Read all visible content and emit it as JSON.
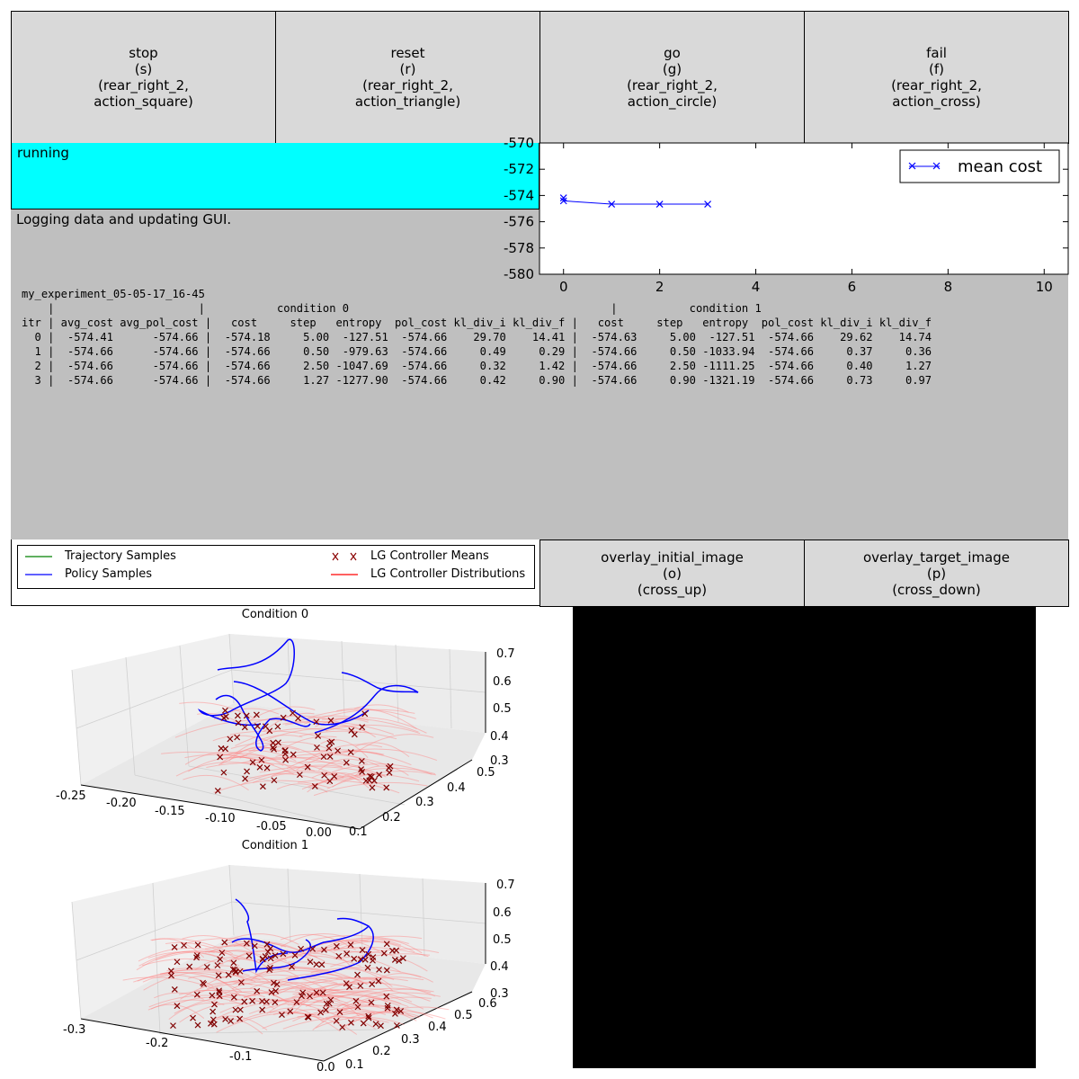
{
  "buttons": [
    {
      "name": "stop-button",
      "label": "stop\n(s)\n(rear_right_2,\naction_square)"
    },
    {
      "name": "reset-button",
      "label": "reset\n(r)\n(rear_right_2,\naction_triangle)"
    },
    {
      "name": "go-button",
      "label": "go\n(g)\n(rear_right_2,\naction_circle)"
    },
    {
      "name": "fail-button",
      "label": "fail\n(f)\n(rear_right_2,\naction_cross)"
    }
  ],
  "overlay_buttons": [
    {
      "name": "overlay-initial-image-button",
      "label": "overlay_initial_image\n(o)\n(cross_up)"
    },
    {
      "name": "overlay-target-image-button",
      "label": "overlay_target_image\n(p)\n(cross_down)"
    }
  ],
  "status": {
    "text": "running",
    "color": "#00ffff"
  },
  "message": "Logging data and updating GUI.",
  "log_text": "my_experiment_05-05-17_16-45\n    |                      |           condition 0                                        |           condition 1\nitr | avg_cost avg_pol_cost |   cost     step   entropy  pol_cost kl_div_i kl_div_f |   cost     step   entropy  pol_cost kl_div_i kl_div_f\n  0 |  -574.41      -574.66 |  -574.18     5.00  -127.51  -574.66    29.70    14.41 |  -574.63     5.00  -127.51  -574.66    29.62    14.74\n  1 |  -574.66      -574.66 |  -574.66     0.50  -979.63  -574.66     0.49     0.29 |  -574.66     0.50 -1033.94  -574.66     0.37     0.36\n  2 |  -574.66      -574.66 |  -574.66     2.50 -1047.69  -574.66     0.32     1.42 |  -574.66     2.50 -1111.25  -574.66     0.40     1.27\n  3 |  -574.66      -574.66 |  -574.66     1.27 -1277.90  -574.66     0.42     0.90 |  -574.66     0.90 -1321.19  -574.66     0.73     0.97",
  "chart_data": [
    {
      "type": "line",
      "series": [
        {
          "name": "mean cost",
          "x": [
            0,
            0,
            1,
            2,
            3
          ],
          "values": [
            -574.18,
            -574.41,
            -574.66,
            -574.66,
            -574.66
          ],
          "color": "#0000ff",
          "marker": "x"
        }
      ],
      "xlim": [
        -0.5,
        10.5
      ],
      "ylim": [
        -580,
        -570
      ],
      "xticks": [
        0,
        2,
        4,
        6,
        8,
        10
      ],
      "yticks": [
        -580,
        -578,
        -576,
        -574,
        -572,
        -570
      ],
      "legend": "top-right"
    }
  ],
  "traj_legend": [
    {
      "label": "Trajectory Samples",
      "color": "#008000",
      "kind": "line"
    },
    {
      "label": "Policy Samples",
      "color": "#0000ff",
      "kind": "line"
    },
    {
      "label": "LG Controller Means",
      "color": "#8b0000",
      "kind": "marker"
    },
    {
      "label": "LG Controller Distributions",
      "color": "#ff0000",
      "kind": "line"
    }
  ],
  "plots3d": [
    {
      "title": "Condition 0",
      "xticks": [
        "-0.25",
        "-0.20",
        "-0.15",
        "-0.10",
        "-0.05",
        "0.00"
      ],
      "yticks": [
        "0.1",
        "0.2",
        "0.3",
        "0.4",
        "0.5"
      ],
      "zticks": [
        "0.3",
        "0.4",
        "0.5",
        "0.6",
        "0.7"
      ]
    },
    {
      "title": "Condition 1",
      "xticks": [
        "-0.3",
        "-0.2",
        "-0.1",
        "0.0"
      ],
      "yticks": [
        "0.1",
        "0.2",
        "0.3",
        "0.4",
        "0.5",
        "0.6"
      ],
      "zticks": [
        "0.3",
        "0.4",
        "0.5",
        "0.6",
        "0.7"
      ]
    }
  ]
}
